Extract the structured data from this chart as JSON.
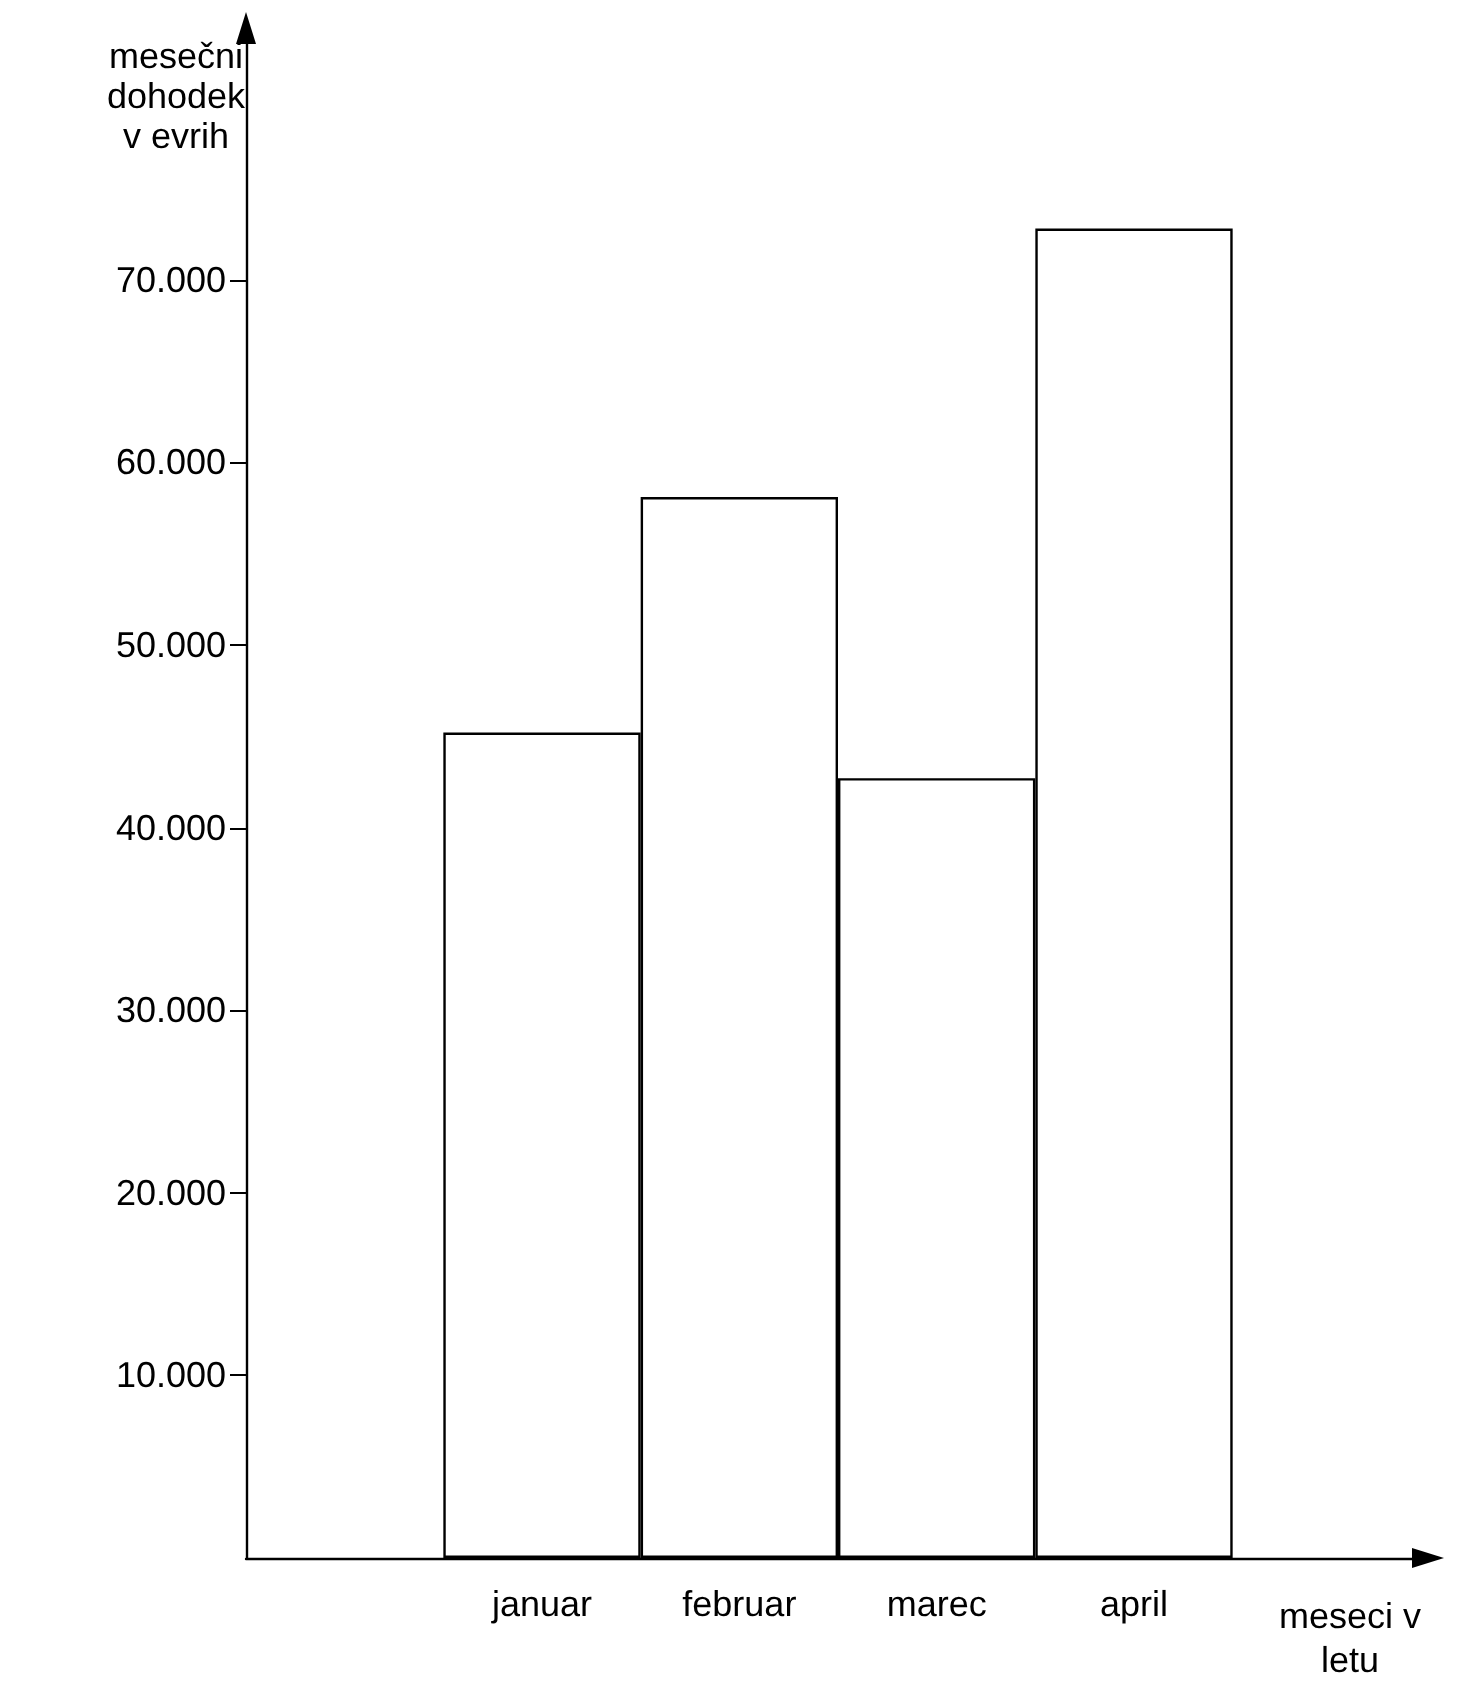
{
  "chart_data": {
    "type": "bar",
    "xlabel": "meseci v letu",
    "ylabel": "mesečni dohodek v evrih",
    "categories": [
      "januar",
      "februar",
      "marec",
      "april"
    ],
    "values": [
      45200,
      58100,
      42700,
      72800
    ],
    "color": "#ffffff",
    "ylim": [
      0,
      84000
    ],
    "yticks": [
      {
        "value": 10000,
        "label": "10.000"
      },
      {
        "value": 20000,
        "label": "20.000"
      },
      {
        "value": 30000,
        "label": "30.000"
      },
      {
        "value": 40000,
        "label": "40.000"
      },
      {
        "value": 50000,
        "label": "50.000"
      },
      {
        "value": 60000,
        "label": "60.000"
      },
      {
        "value": 70000,
        "label": "70.000"
      }
    ],
    "grid": false
  }
}
